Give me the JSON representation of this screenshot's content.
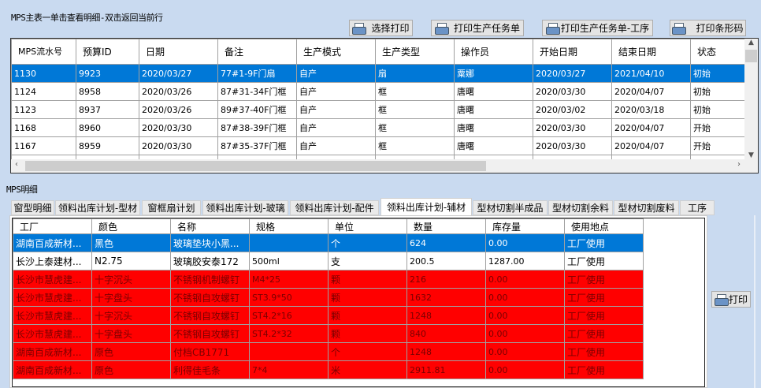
{
  "master": {
    "group_label": "MPS主表一单击查看明细-双击返回当前行",
    "buttons": [
      "选择打印",
      "打印生产任务单",
      "打印生产任务单-工序",
      "打印条形码"
    ],
    "columns": [
      "MPS流水号",
      "预算ID",
      "日期",
      "备注",
      "生产模式",
      "生产类型",
      "操作员",
      "开始日期",
      "结束日期",
      "状态"
    ],
    "rows": [
      [
        "1130",
        "9923",
        "2020/03/27",
        "77#1-9F门扇",
        "自产",
        "扇",
        "粟娜",
        "2020/03/27",
        "2021/04/10",
        "初始"
      ],
      [
        "1124",
        "8958",
        "2020/03/26",
        "87#31-34F门框",
        "自产",
        "框",
        "唐曙",
        "2020/03/30",
        "2020/04/07",
        "初始"
      ],
      [
        "1123",
        "8937",
        "2020/03/26",
        "89#37-40F门框",
        "自产",
        "框",
        "唐曙",
        "2020/03/02",
        "2020/03/18",
        "初始"
      ],
      [
        "1168",
        "8960",
        "2020/03/30",
        "87#38-39F门框",
        "自产",
        "框",
        "唐曙",
        "2020/03/30",
        "2020/04/07",
        "开始"
      ],
      [
        "1167",
        "8959",
        "2020/03/30",
        "87#35-37F门框",
        "自产",
        "框",
        "唐曙",
        "2020/03/30",
        "2020/04/07",
        "开始"
      ]
    ],
    "selected_row": 0
  },
  "detail": {
    "group_label": "MPS明细",
    "tabs": [
      "窗型明细",
      "领料出库计划-型材",
      "窗框扇计划",
      "领料出库计划-玻璃",
      "领料出库计划-配件",
      "领料出库计划-辅材",
      "型材切割半成品",
      "型材切割余料",
      "型材切割废料",
      "工序"
    ],
    "active_tab": 5,
    "columns": [
      "工厂",
      "颜色",
      "名称",
      "规格",
      "单位",
      "数量",
      "库存量",
      "使用地点"
    ],
    "rows": [
      [
        "湖南百成新材...",
        "黑色",
        "玻璃垫块小黑...",
        "",
        "个",
        "624",
        "0.00",
        "工厂使用"
      ],
      [
        "长沙上泰建材...",
        "N2.75",
        "玻璃胶安泰172",
        "500ml",
        "支",
        "200.5",
        "1287.00",
        "工厂使用"
      ],
      [
        "长沙市慧虎建...",
        "十字沉头",
        "不锈钢机制螺钉",
        "M4*25",
        "颗",
        "216",
        "0.00",
        "工厂使用"
      ],
      [
        "长沙市慧虎建...",
        "十字盘头",
        "不锈钢自攻螺钉",
        "ST3.9*50",
        "颗",
        "1632",
        "0.00",
        "工厂使用"
      ],
      [
        "长沙市慧虎建...",
        "十字沉头",
        "不锈钢自攻螺钉",
        "ST4.2*16",
        "颗",
        "1248",
        "0.00",
        "工厂使用"
      ],
      [
        "长沙市慧虎建...",
        "十字盘头",
        "不锈钢自攻螺钉",
        "ST4.2*32",
        "颗",
        "840",
        "0.00",
        "工厂使用"
      ],
      [
        "湖南百成新材...",
        "原色",
        "付档CB1771",
        "",
        "个",
        "1248",
        "0.00",
        "工厂使用"
      ],
      [
        "湖南百成新材...",
        "原色",
        "利得佳毛条",
        "7*4",
        "米",
        "2911.81",
        "0.00",
        "工厂使用"
      ]
    ],
    "row_styles": [
      "selected",
      "normal",
      "red",
      "red",
      "red",
      "red",
      "red",
      "red"
    ],
    "print_button": "打印"
  },
  "colors": {
    "selection": "#0078d7",
    "warning_row": "#ff0000",
    "background": "#c9daf0"
  }
}
